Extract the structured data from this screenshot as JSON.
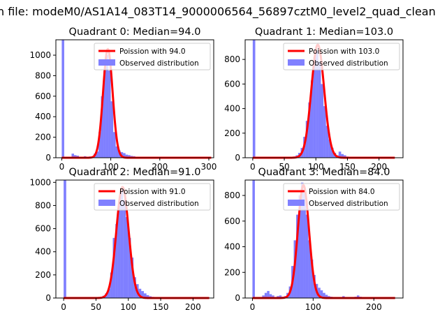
{
  "figure": {
    "suptitle": "n file: modeM0/AS1A14_083T14_9000006564_56897cztM0_level2_quad_clean"
  },
  "chart_data": [
    {
      "type": "bar",
      "title": "Quadrant 0: Median=94.0",
      "xlim": [
        -12,
        310
      ],
      "ylim": [
        0,
        1150
      ],
      "xticks": [
        0,
        100,
        200,
        300
      ],
      "yticks": [
        0,
        200,
        400,
        600,
        800,
        1000
      ],
      "legend_position": "top-right",
      "legend": [
        {
          "label": "Poission with 94.0",
          "kind": "line",
          "color": "#ff0000"
        },
        {
          "label": "Observed distribution",
          "kind": "patch",
          "color": "#8080ff"
        }
      ],
      "histogram": {
        "bin_width": 5,
        "bins": [
          [
            0,
            1150
          ],
          [
            20,
            40
          ],
          [
            25,
            25
          ],
          [
            30,
            20
          ],
          [
            45,
            15
          ],
          [
            55,
            12
          ],
          [
            60,
            8
          ],
          [
            65,
            40
          ],
          [
            70,
            60
          ],
          [
            75,
            250
          ],
          [
            80,
            600
          ],
          [
            85,
            850
          ],
          [
            90,
            1000
          ],
          [
            95,
            850
          ],
          [
            100,
            550
          ],
          [
            105,
            250
          ],
          [
            110,
            110
          ],
          [
            115,
            70
          ],
          [
            120,
            55
          ],
          [
            125,
            45
          ],
          [
            130,
            30
          ],
          [
            135,
            25
          ],
          [
            140,
            18
          ],
          [
            145,
            15
          ],
          [
            150,
            10
          ],
          [
            155,
            8
          ],
          [
            160,
            5
          ]
        ]
      },
      "poisson_mean": 94.0,
      "poisson_peak": 1060,
      "poisson_range": [
        0,
        305
      ]
    },
    {
      "type": "bar",
      "title": "Quadrant 1: Median=103.0",
      "xlim": [
        -12,
        238
      ],
      "ylim": [
        0,
        960
      ],
      "xticks": [
        0,
        50,
        100,
        150,
        200
      ],
      "yticks": [
        0,
        200,
        400,
        600,
        800
      ],
      "legend_position": "top-right",
      "legend": [
        {
          "label": "Poission with 103.0",
          "kind": "line",
          "color": "#ff0000"
        },
        {
          "label": "Observed distribution",
          "kind": "patch",
          "color": "#8080ff"
        }
      ],
      "histogram": {
        "bin_width": 4,
        "bins": [
          [
            0,
            960
          ],
          [
            64,
            10
          ],
          [
            68,
            20
          ],
          [
            72,
            40
          ],
          [
            76,
            80
          ],
          [
            80,
            170
          ],
          [
            84,
            300
          ],
          [
            88,
            450
          ],
          [
            92,
            630
          ],
          [
            96,
            820
          ],
          [
            100,
            870
          ],
          [
            104,
            780
          ],
          [
            108,
            600
          ],
          [
            112,
            420
          ],
          [
            116,
            260
          ],
          [
            120,
            150
          ],
          [
            124,
            80
          ],
          [
            128,
            40
          ],
          [
            132,
            20
          ],
          [
            136,
            50
          ],
          [
            140,
            30
          ],
          [
            144,
            20
          ],
          [
            148,
            10
          ]
        ]
      },
      "poisson_mean": 103.0,
      "poisson_peak": 920,
      "poisson_range": [
        0,
        225
      ]
    },
    {
      "type": "bar",
      "title": "Quadrant 2: Median=91.0",
      "xlim": [
        -12,
        232
      ],
      "ylim": [
        0,
        1020
      ],
      "xticks": [
        0,
        50,
        100,
        150,
        200
      ],
      "yticks": [
        0,
        200,
        400,
        600,
        800,
        1000
      ],
      "legend_position": "top-right",
      "legend": [
        {
          "label": "Poission with 91.0",
          "kind": "line",
          "color": "#ff0000"
        },
        {
          "label": "Observed distribution",
          "kind": "patch",
          "color": "#8080ff"
        }
      ],
      "histogram": {
        "bin_width": 4,
        "bins": [
          [
            0,
            1020
          ],
          [
            56,
            10
          ],
          [
            60,
            20
          ],
          [
            64,
            40
          ],
          [
            68,
            80
          ],
          [
            72,
            220
          ],
          [
            76,
            520
          ],
          [
            80,
            640
          ],
          [
            84,
            800
          ],
          [
            88,
            950
          ],
          [
            92,
            850
          ],
          [
            96,
            700
          ],
          [
            100,
            520
          ],
          [
            104,
            350
          ],
          [
            108,
            180
          ],
          [
            112,
            120
          ],
          [
            116,
            80
          ],
          [
            120,
            60
          ],
          [
            124,
            40
          ],
          [
            128,
            25
          ],
          [
            132,
            15
          ],
          [
            136,
            10
          ],
          [
            140,
            5
          ]
        ]
      },
      "poisson_mean": 91.0,
      "poisson_peak": 960,
      "poisson_range": [
        0,
        225
      ]
    },
    {
      "type": "bar",
      "title": "Quadrant 3: Median=84.0",
      "xlim": [
        -12,
        248
      ],
      "ylim": [
        0,
        920
      ],
      "xticks": [
        0,
        100,
        200
      ],
      "yticks": [
        0,
        200,
        400,
        600,
        800
      ],
      "legend_position": "top-right",
      "legend": [
        {
          "label": "Poission with 84.0",
          "kind": "line",
          "color": "#ff0000"
        },
        {
          "label": "Observed distribution",
          "kind": "patch",
          "color": "#8080ff"
        }
      ],
      "histogram": {
        "bin_width": 4,
        "bins": [
          [
            0,
            920
          ],
          [
            16,
            20
          ],
          [
            20,
            40
          ],
          [
            24,
            55
          ],
          [
            28,
            30
          ],
          [
            32,
            20
          ],
          [
            40,
            15
          ],
          [
            44,
            20
          ],
          [
            48,
            10
          ],
          [
            52,
            15
          ],
          [
            56,
            40
          ],
          [
            60,
            90
          ],
          [
            64,
            250
          ],
          [
            68,
            450
          ],
          [
            72,
            650
          ],
          [
            76,
            800
          ],
          [
            80,
            900
          ],
          [
            84,
            820
          ],
          [
            88,
            650
          ],
          [
            92,
            450
          ],
          [
            96,
            300
          ],
          [
            100,
            180
          ],
          [
            104,
            110
          ],
          [
            108,
            80
          ],
          [
            112,
            60
          ],
          [
            116,
            40
          ],
          [
            120,
            25
          ],
          [
            124,
            15
          ],
          [
            128,
            10
          ],
          [
            148,
            15
          ],
          [
            168,
            10
          ],
          [
            172,
            20
          ],
          [
            176,
            10
          ]
        ]
      },
      "poisson_mean": 84.0,
      "poisson_peak": 880,
      "poisson_range": [
        0,
        235
      ]
    }
  ]
}
